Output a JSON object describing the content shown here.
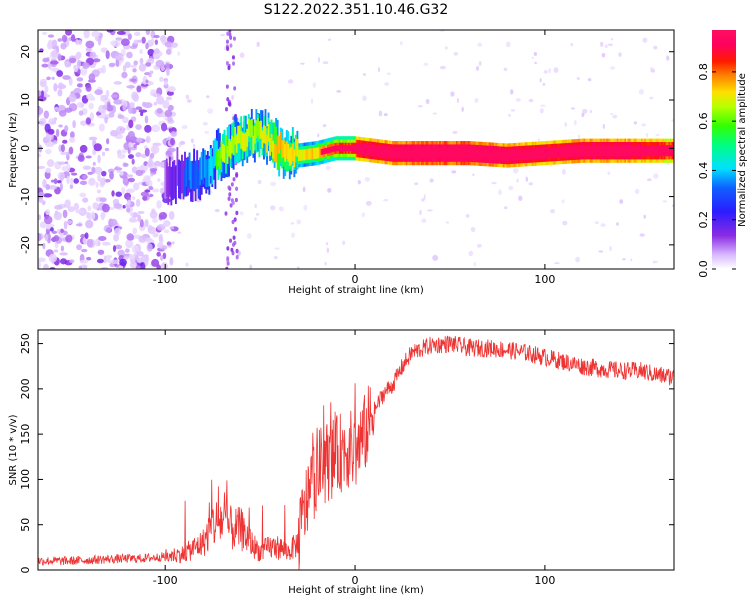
{
  "title": "S122.2022.351.10.46.G32",
  "chart_data": [
    {
      "type": "heatmap",
      "title": "",
      "xlabel": "Height of straight line (km)",
      "ylabel": "Frequency (Hz)",
      "xlim": [
        -167,
        168
      ],
      "ylim": [
        -25,
        24.5
      ],
      "xticks": [
        -100,
        0,
        100
      ],
      "yticks": [
        -20,
        -10,
        0,
        10,
        20
      ],
      "colorbar": {
        "label": "Normalized spectral amplitude",
        "range": [
          0.0,
          0.97
        ],
        "ticks": [
          0.0,
          0.2,
          0.4,
          0.6,
          0.8
        ],
        "colormap": "rainbow (white-violet-blue-cyan-green-yellow-red-magenta)"
      },
      "ridge": {
        "description": "dominant frequency trace",
        "x": [
          -100,
          -80,
          -70,
          -60,
          -50,
          -40,
          -30,
          -20,
          -10,
          0,
          20,
          40,
          60,
          80,
          100,
          120,
          140,
          160,
          168
        ],
        "freq_hz": [
          -6,
          -5,
          -1,
          2,
          3,
          0,
          -1.5,
          -1,
          0,
          0,
          -1,
          -1,
          -1,
          -1.5,
          -1,
          -0.5,
          -0.5,
          -0.5,
          -0.5
        ],
        "amplitude": [
          0.15,
          0.3,
          0.45,
          0.5,
          0.5,
          0.6,
          0.55,
          0.6,
          0.75,
          0.8,
          0.85,
          0.9,
          0.9,
          0.85,
          0.8,
          0.85,
          0.85,
          0.8,
          0.75
        ]
      },
      "noise_region_x": [
        -167,
        -100
      ]
    },
    {
      "type": "line",
      "title": "",
      "xlabel": "Height of straight line (km)",
      "ylabel": "SNR (10 * v/v)",
      "xlim": [
        -167,
        168
      ],
      "ylim": [
        0,
        265
      ],
      "xticks": [
        -100,
        0,
        100
      ],
      "yticks": [
        0,
        50,
        100,
        150,
        200,
        250
      ],
      "color": "#ee3333",
      "series": [
        {
          "x": [
            -167,
            -150,
            -130,
            -110,
            -100,
            -90,
            -80,
            -75,
            -70,
            -65,
            -60,
            -55,
            -50,
            -45,
            -40,
            -35,
            -30,
            -25,
            -20,
            -15,
            -10,
            -5,
            0,
            5,
            10,
            15,
            20,
            25,
            30,
            40,
            50,
            60,
            70,
            80,
            90,
            100,
            110,
            120,
            130,
            140,
            150,
            160,
            168
          ],
          "y": [
            10,
            10,
            12,
            13,
            15,
            18,
            30,
            50,
            55,
            45,
            45,
            30,
            20,
            25,
            25,
            20,
            30,
            80,
            110,
            120,
            125,
            135,
            130,
            150,
            175,
            195,
            205,
            225,
            240,
            248,
            250,
            245,
            245,
            243,
            240,
            235,
            230,
            225,
            222,
            220,
            220,
            215,
            213
          ]
        }
      ]
    }
  ]
}
